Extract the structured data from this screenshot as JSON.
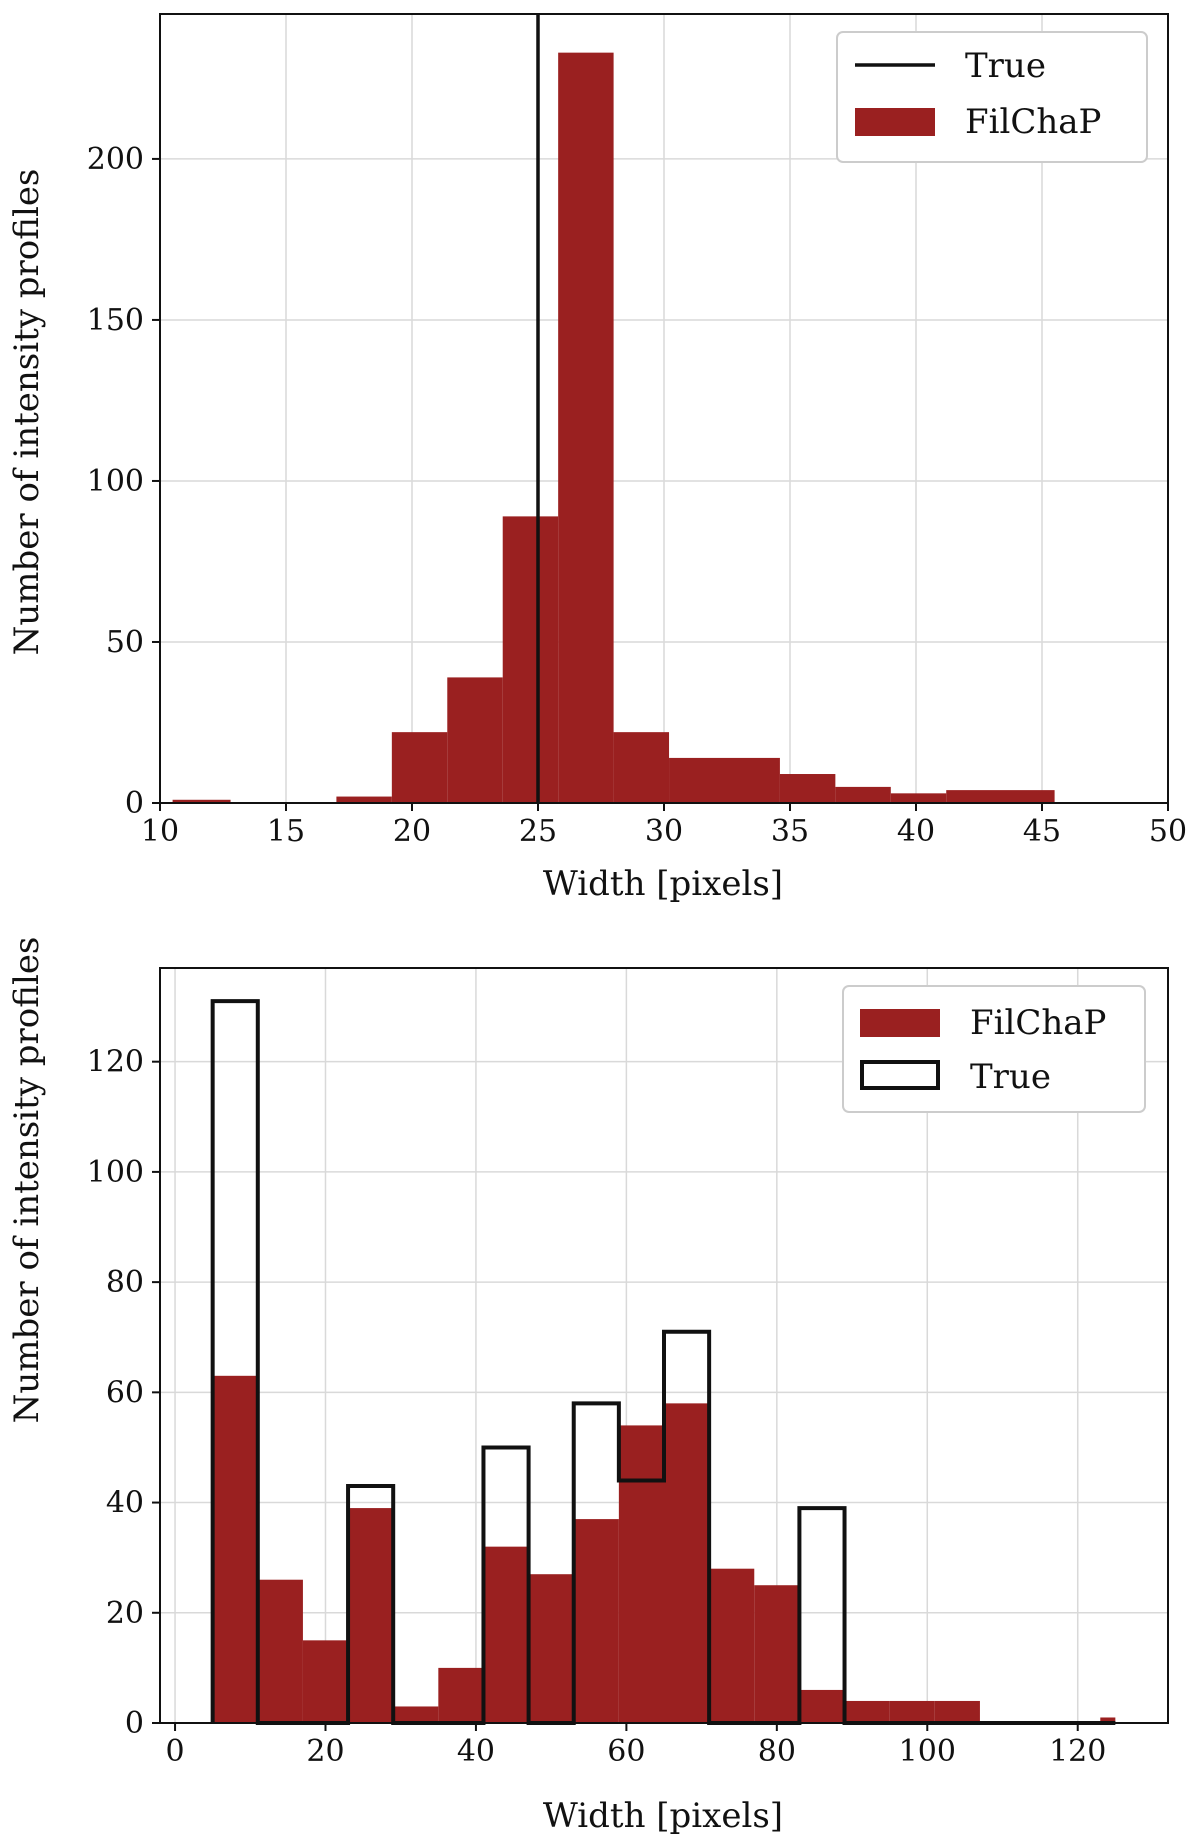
{
  "colors": {
    "bar": "#9a2020",
    "grid": "#d9d9d9",
    "axis": "#111111",
    "legend_frame": "#cccccc"
  },
  "chart_data": [
    {
      "type": "bar",
      "title": "",
      "xlabel": "Width [pixels]",
      "ylabel": "Number of intensity profiles",
      "xlim": [
        10,
        50
      ],
      "ylim": [
        0,
        245
      ],
      "xticks": [
        10,
        15,
        20,
        25,
        30,
        35,
        40,
        45,
        50
      ],
      "yticks": [
        0,
        50,
        100,
        150,
        200
      ],
      "grid": true,
      "legend_position": "top-right",
      "legend": [
        "True",
        "FilChaP"
      ],
      "reference_line": {
        "name": "True",
        "x": 25
      },
      "series": [
        {
          "name": "FilChaP",
          "bins": [
            [
              10.5,
              12.8,
              1
            ],
            [
              17.0,
              19.2,
              2
            ],
            [
              19.2,
              21.4,
              22
            ],
            [
              21.4,
              23.6,
              39
            ],
            [
              23.6,
              25.8,
              89
            ],
            [
              25.8,
              28.0,
              233
            ],
            [
              28.0,
              30.2,
              22
            ],
            [
              30.2,
              34.6,
              14
            ],
            [
              34.6,
              36.8,
              9
            ],
            [
              36.8,
              39.0,
              5
            ],
            [
              39.0,
              41.2,
              3
            ],
            [
              41.2,
              45.5,
              4
            ]
          ]
        }
      ]
    },
    {
      "type": "bar",
      "title": "",
      "xlabel": "Width [pixels]",
      "ylabel": "Number of intensity profiles",
      "xlim": [
        -2,
        132
      ],
      "ylim": [
        0,
        137
      ],
      "xticks": [
        0,
        20,
        40,
        60,
        80,
        100,
        120
      ],
      "yticks": [
        0,
        20,
        40,
        60,
        80,
        100,
        120
      ],
      "grid": true,
      "legend_position": "top-right",
      "legend": [
        "FilChaP",
        "True"
      ],
      "series": [
        {
          "name": "FilChaP",
          "bins": [
            [
              5,
              11,
              63
            ],
            [
              11,
              17,
              26
            ],
            [
              17,
              23,
              15
            ],
            [
              23,
              29,
              39
            ],
            [
              29,
              35,
              3
            ],
            [
              35,
              41,
              10
            ],
            [
              41,
              47,
              32
            ],
            [
              47,
              53,
              27
            ],
            [
              53,
              59,
              37
            ],
            [
              59,
              65,
              54
            ],
            [
              65,
              71,
              58
            ],
            [
              71,
              77,
              28
            ],
            [
              77,
              83,
              25
            ],
            [
              83,
              89,
              6
            ],
            [
              89,
              95,
              4
            ],
            [
              95,
              101,
              4
            ],
            [
              101,
              107,
              4
            ],
            [
              123,
              125,
              1
            ]
          ]
        },
        {
          "name": "True",
          "bins": [
            [
              5,
              11,
              131
            ],
            [
              11,
              17,
              0
            ],
            [
              17,
              23,
              0
            ],
            [
              23,
              29,
              43
            ],
            [
              29,
              35,
              0
            ],
            [
              35,
              41,
              0
            ],
            [
              41,
              47,
              50
            ],
            [
              47,
              53,
              0
            ],
            [
              53,
              59,
              58
            ],
            [
              59,
              65,
              44
            ],
            [
              65,
              71,
              71
            ],
            [
              71,
              77,
              0
            ],
            [
              77,
              83,
              0
            ],
            [
              83,
              89,
              39
            ],
            [
              89,
              95,
              0
            ],
            [
              95,
              101,
              0
            ],
            [
              101,
              107,
              0
            ],
            [
              107,
              113,
              0
            ],
            [
              113,
              119,
              0
            ],
            [
              119,
              125,
              0
            ]
          ]
        }
      ]
    }
  ]
}
